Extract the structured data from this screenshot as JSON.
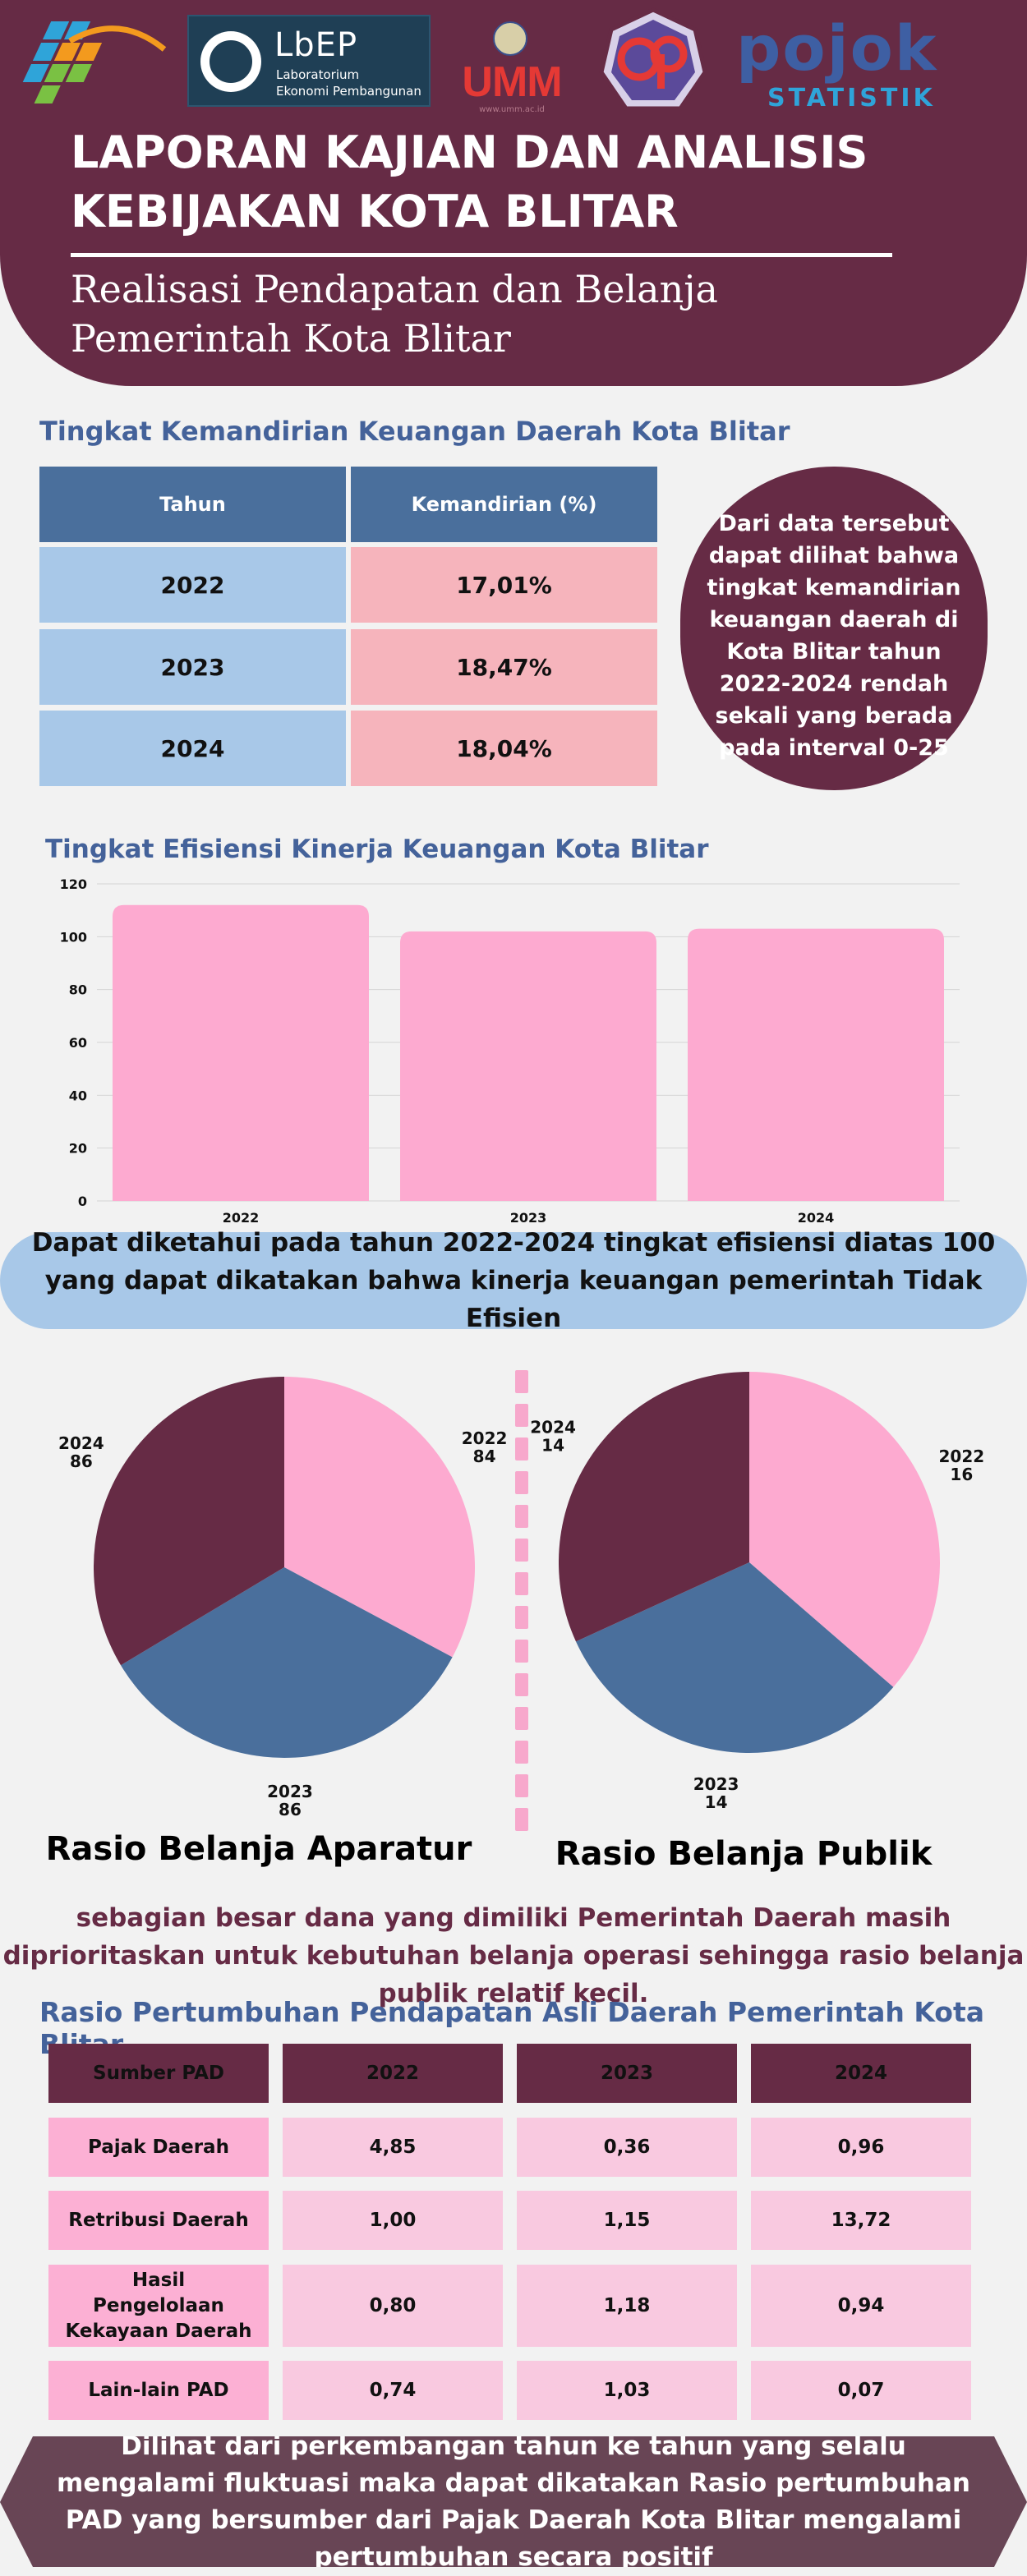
{
  "header": {
    "title_line1": "LAPORAN KAJIAN DAN ANALISIS",
    "title_line2": "KEBIJAKAN KOTA BLITAR",
    "subtitle_line1": "Realisasi Pendapatan dan Belanja",
    "subtitle_line2": "Pemerintah Kota Blitar",
    "logos": {
      "lab_mark": "LbEP",
      "lab_line1": "Laboratorium",
      "lab_line2": "Ekonomi Pembangunan",
      "umm": "UMM",
      "umm_url": "www.umm.ac.id",
      "pojok": "pojok",
      "statistik": "STATISTIK"
    }
  },
  "kemandirian": {
    "title": "Tingkat Kemandirian Keuangan Daerah Kota Blitar",
    "headers": [
      "Tahun",
      "Kemandirian (%)"
    ],
    "rows": [
      {
        "year": "2022",
        "value": "17,01%"
      },
      {
        "year": "2023",
        "value": "18,47%"
      },
      {
        "year": "2024",
        "value": "18,04%"
      }
    ],
    "note": "Dari data tersebut dapat dilihat bahwa tingkat kemandirian keuangan daerah di Kota Blitar tahun 2022-2024 rendah sekali yang berada pada interval 0-25"
  },
  "chart_data": [
    {
      "type": "bar",
      "title": "Tingkat Efisiensi Kinerja Keuangan Kota Blitar",
      "categories": [
        "2022",
        "2023",
        "2024"
      ],
      "values": [
        112,
        102,
        103
      ],
      "ylim": [
        0,
        120
      ],
      "yticks": [
        0,
        20,
        40,
        60,
        80,
        100,
        120
      ],
      "grid": true,
      "color": "#fdaad0"
    },
    {
      "type": "pie",
      "title": "Rasio Belanja Aparatur",
      "labels": [
        "2022",
        "2023",
        "2024"
      ],
      "values": [
        84,
        86,
        86
      ],
      "colors": [
        "#fdaad0",
        "#4a6f9c",
        "#662b45"
      ]
    },
    {
      "type": "pie",
      "title": "Rasio Belanja Publik",
      "labels": [
        "2022",
        "2023",
        "2024"
      ],
      "values": [
        16,
        14,
        14
      ],
      "colors": [
        "#fdaad0",
        "#4a6f9c",
        "#662b45"
      ]
    }
  ],
  "efisiensi_note": "Dapat diketahui pada tahun 2022-2024 tingkat efisiensi diatas 100 yang dapat dikatakan bahwa kinerja keuangan pemerintah Tidak Efisien",
  "belanja_note": "sebagian besar dana yang dimiliki Pemerintah Daerah masih diprioritaskan untuk kebutuhan belanja operasi sehingga rasio belanja publik relatif kecil.",
  "pad": {
    "title": "Rasio Pertumbuhan Pendapatan Asli Daerah Pemerintah Kota Blitar",
    "headers": [
      "Sumber PAD",
      "2022",
      "2023",
      "2024"
    ],
    "rows": [
      {
        "source": "Pajak Daerah",
        "values": [
          "4,85",
          "0,36",
          "0,96"
        ]
      },
      {
        "source": "Retribusi Daerah",
        "values": [
          "1,00",
          "1,15",
          "13,72"
        ]
      },
      {
        "source": "Hasil Pengelolaan Kekayaan Daerah",
        "values": [
          "0,80",
          "1,18",
          "0,94"
        ]
      },
      {
        "source": "Lain-lain PAD",
        "values": [
          "0,74",
          "1,03",
          "0,07"
        ]
      }
    ]
  },
  "footer_note": "Dilihat dari perkembangan tahun ke tahun yang selalu mengalami fluktuasi maka dapat dikatakan Rasio pertumbuhan PAD yang bersumber dari Pajak Daerah Kota Blitar mengalami pertumbuhan secara positif",
  "colors": {
    "maroon": "#662b45",
    "blue": "#4a6f9c",
    "light_blue": "#a8c8e8",
    "pink": "#fdaad0",
    "light_pink": "#f6b4bc",
    "title_blue": "#44629a"
  }
}
